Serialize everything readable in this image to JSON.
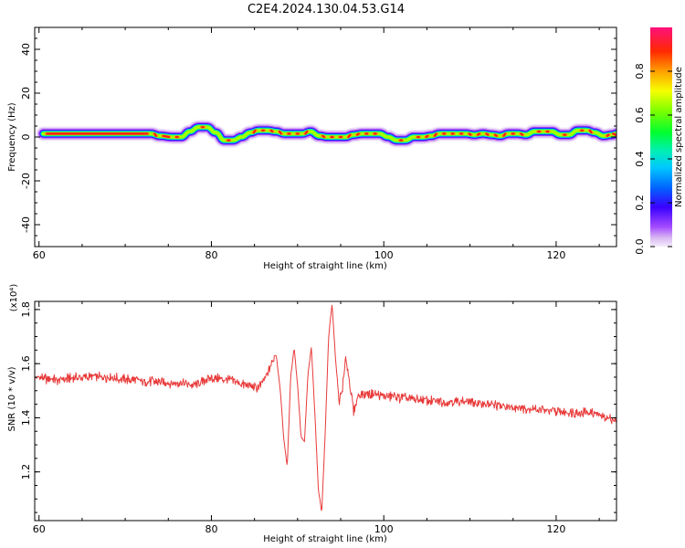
{
  "figure": {
    "title": "C2E4.2024.130.04.53.G14"
  },
  "chart_data": [
    {
      "type": "heatmap",
      "title": "C2E4.2024.130.04.53.G14",
      "xlabel": "Height of straight line (km)",
      "ylabel": "Frequency (Hz)",
      "xlim": [
        59.5,
        127
      ],
      "ylim": [
        -50,
        50
      ],
      "xticks": [
        60,
        80,
        100,
        120
      ],
      "yticks": [
        -40,
        -20,
        0,
        20,
        40
      ],
      "colorbar": {
        "label": "Normalized spectral amplitude",
        "range": [
          0,
          1
        ],
        "ticks": [
          "0.0",
          "0.2",
          "0.4",
          "0.6",
          "0.8"
        ],
        "colormap": "rainbow (white-purple-blue-cyan-green-yellow-orange-red-pink)"
      },
      "ridge": {
        "description": "Dominant frequency track (Hz) vs height (km)",
        "x": [
          60.5,
          73,
          74,
          75.5,
          76.5,
          77.5,
          78.5,
          79.5,
          80.5,
          81.5,
          82.5,
          83.5,
          84.5,
          85.5,
          86.5,
          87.5,
          88.5,
          89.5,
          90.5,
          91.5,
          92.5,
          93.5,
          94.5,
          95.5,
          96.5,
          97.5,
          98.5,
          99.5,
          100.5,
          101.5,
          102.5,
          103.5,
          104.5,
          105.5,
          106.5,
          107.5,
          108.5,
          109.5,
          110.5,
          111.5,
          112.5,
          113.5,
          114.5,
          115.5,
          116.5,
          117.5,
          118.5,
          119.5,
          120.5,
          121.5,
          122.5,
          123.5,
          124.5,
          125.5,
          126.5,
          127
        ],
        "y": [
          1.5,
          1.5,
          0.5,
          0,
          0,
          2.5,
          4.5,
          4.5,
          2,
          -1.5,
          -1.5,
          0,
          2,
          3,
          3,
          2.5,
          1.5,
          1.5,
          1.5,
          2.5,
          0.5,
          0,
          0,
          0,
          1,
          1.5,
          1.5,
          1.5,
          0,
          -1.5,
          -1.5,
          0,
          0,
          0.5,
          1.5,
          1.5,
          1.5,
          1.5,
          1,
          1.5,
          1,
          0.5,
          1.5,
          1.5,
          1,
          2.5,
          2.5,
          2.5,
          1,
          1,
          3,
          3,
          2,
          0.5,
          1,
          1.5
        ]
      }
    },
    {
      "type": "line",
      "xlabel": "Height of straight line (km)",
      "ylabel": "SNR (10 * v/v)",
      "y_multiplier": "(x10⁴)",
      "xlim": [
        59.5,
        127
      ],
      "ylim": [
        1.02,
        1.83
      ],
      "xticks": [
        60,
        80,
        100,
        120
      ],
      "yticks": [
        1.2,
        1.4,
        1.6,
        1.8
      ],
      "yticklabels": [
        "1.2",
        "1.4",
        "1.6",
        "1.8"
      ],
      "color": "#e83a3a",
      "series": [
        {
          "x": [
            59.5,
            62,
            65,
            68,
            71,
            74,
            76,
            78,
            80,
            82,
            84,
            85.5,
            86.5,
            87.5,
            88,
            88.4,
            88.8,
            89.2,
            89.6,
            90.0,
            90.4,
            90.8,
            91.2,
            91.6,
            92.0,
            92.4,
            92.8,
            93.2,
            93.6,
            94.0,
            94.4,
            94.8,
            95.2,
            95.6,
            96.0,
            96.5,
            97,
            98,
            100,
            103,
            106,
            109,
            112,
            115,
            118,
            121,
            124,
            127
          ],
          "y": [
            1.55,
            1.54,
            1.55,
            1.55,
            1.54,
            1.53,
            1.53,
            1.52,
            1.55,
            1.54,
            1.52,
            1.51,
            1.56,
            1.64,
            1.5,
            1.32,
            1.22,
            1.55,
            1.66,
            1.52,
            1.33,
            1.31,
            1.56,
            1.66,
            1.42,
            1.14,
            1.05,
            1.34,
            1.7,
            1.82,
            1.62,
            1.46,
            1.51,
            1.62,
            1.54,
            1.42,
            1.48,
            1.49,
            1.48,
            1.47,
            1.46,
            1.46,
            1.45,
            1.44,
            1.43,
            1.42,
            1.42,
            1.39
          ]
        }
      ]
    }
  ]
}
